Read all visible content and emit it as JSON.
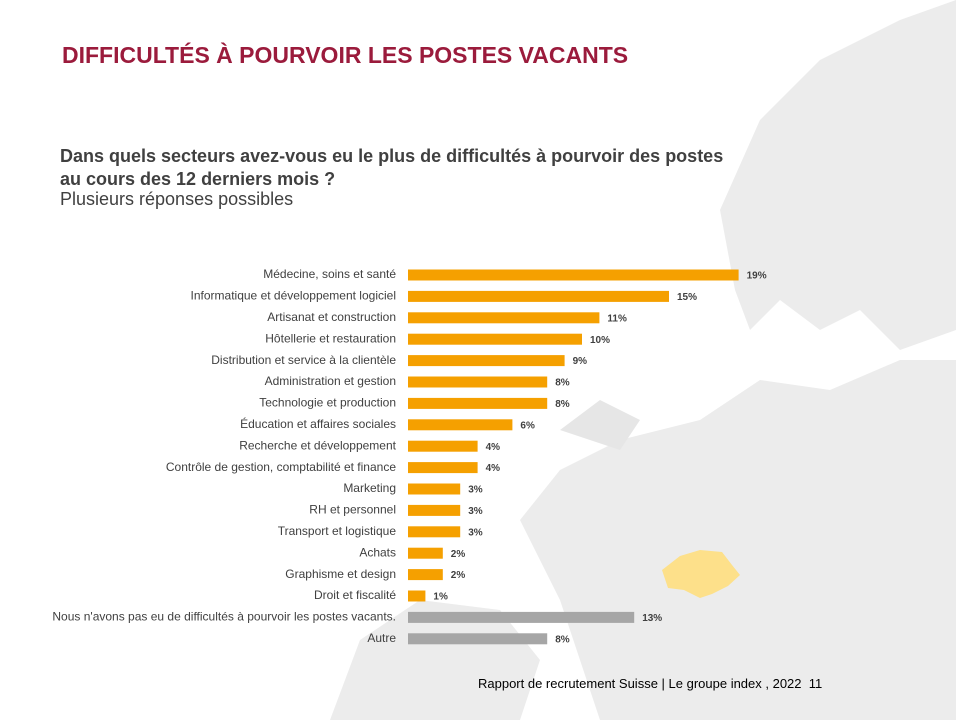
{
  "header": {
    "title": "DIFFICULTÉS À POURVOIR LES POSTES VACANTS",
    "question": "Dans quels secteurs avez-vous eu le plus de difficultés à pourvoir des postes au cours des 12 derniers mois ?",
    "subtitle": "Plusieurs réponses possibles"
  },
  "chart_data": {
    "type": "hbar",
    "categories": [
      "Médecine, soins et santé",
      "Informatique et développement logiciel",
      "Artisanat et construction",
      "Hôtellerie et restauration",
      "Distribution et service à la clientèle",
      "Administration et gestion",
      "Technologie et production",
      "Éducation et affaires sociales",
      "Recherche et développement",
      "Contrôle de gestion, comptabilité et finance",
      "Marketing",
      "RH et personnel",
      "Transport et logistique",
      "Achats",
      "Graphisme et design",
      "Droit et fiscalité",
      "Nous n'avons pas eu de difficultés à pourvoir les postes vacants.",
      "Autre"
    ],
    "values": [
      19,
      15,
      11,
      10,
      9,
      8,
      8,
      6,
      4,
      4,
      3,
      3,
      3,
      2,
      2,
      1,
      13,
      8
    ],
    "value_labels": [
      "19%",
      "15%",
      "11%",
      "10%",
      "9%",
      "8%",
      "8%",
      "6%",
      "4%",
      "4%",
      "3%",
      "3%",
      "3%",
      "2%",
      "2%",
      "1%",
      "13%",
      "8%"
    ],
    "colors": [
      "#f5a000",
      "#f5a000",
      "#f5a000",
      "#f5a000",
      "#f5a000",
      "#f5a000",
      "#f5a000",
      "#f5a000",
      "#f5a000",
      "#f5a000",
      "#f5a000",
      "#f5a000",
      "#f5a000",
      "#f5a000",
      "#f5a000",
      "#f5a000",
      "#a6a6a6",
      "#a6a6a6"
    ]
  },
  "footer": {
    "text": "Rapport de recrutement Suisse | Le groupe index , 2022",
    "page": "11"
  }
}
